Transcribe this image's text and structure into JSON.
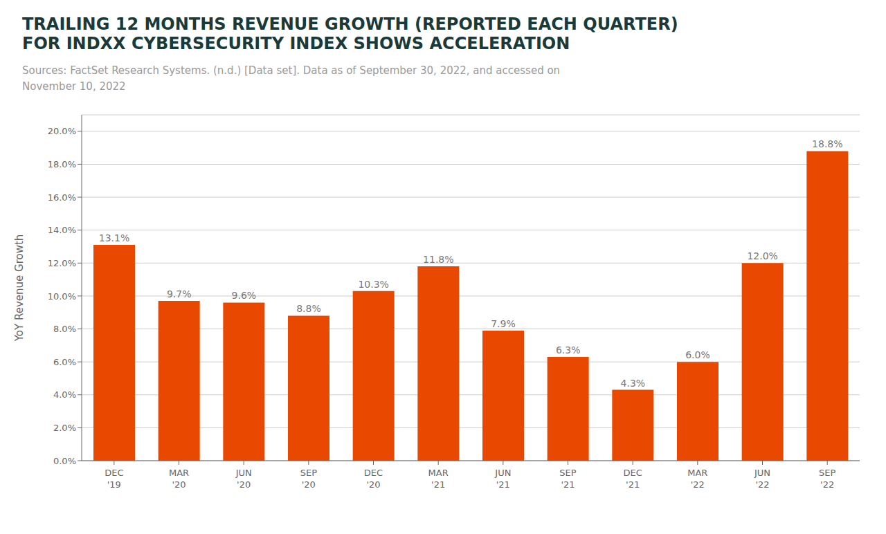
{
  "chart_data": {
    "type": "bar",
    "title": "TRAILING 12 MONTHS REVENUE GROWTH (REPORTED EACH QUARTER)\nFOR INDXX CYBERSECURITY INDEX SHOWS ACCELERATION",
    "subtitle": "Sources: FactSet Research Systems. (n.d.) [Data set]. Data as of September 30, 2022, and accessed on\nNovember 10, 2022",
    "ylabel": "YoY Revenue Growth",
    "categories": [
      "DEC\n'19",
      "MAR\n'20",
      "JUN\n'20",
      "SEP\n'20",
      "DEC\n'20",
      "MAR\n'21",
      "JUN\n'21",
      "SEP\n'21",
      "DEC\n'21",
      "MAR\n'22",
      "JUN\n'22",
      "SEP\n'22"
    ],
    "values": [
      13.1,
      9.7,
      9.6,
      8.8,
      10.3,
      11.8,
      7.9,
      6.3,
      4.3,
      6.0,
      12.0,
      18.8
    ],
    "value_labels": [
      "13.1%",
      "9.7%",
      "9.6%",
      "8.8%",
      "10.3%",
      "11.8%",
      "7.9%",
      "6.3%",
      "4.3%",
      "6.0%",
      "12.0%",
      "18.8%"
    ],
    "color": "#E84800",
    "ylim": [
      0,
      21
    ],
    "yticks": [
      {
        "value": 0.0,
        "label": "0.0%"
      },
      {
        "value": 2.0,
        "label": "2.0%"
      },
      {
        "value": 4.0,
        "label": "4.0%"
      },
      {
        "value": 6.0,
        "label": "6.0%"
      },
      {
        "value": 8.0,
        "label": "8.0%"
      },
      {
        "value": 10.0,
        "label": "10.0%"
      },
      {
        "value": 12.0,
        "label": "12.0%"
      },
      {
        "value": 14.0,
        "label": "14.0%"
      },
      {
        "value": 16.0,
        "label": "16.0%"
      },
      {
        "value": 18.0,
        "label": "18.0%"
      },
      {
        "value": 20.0,
        "label": "20.0%"
      }
    ],
    "grid": true
  }
}
